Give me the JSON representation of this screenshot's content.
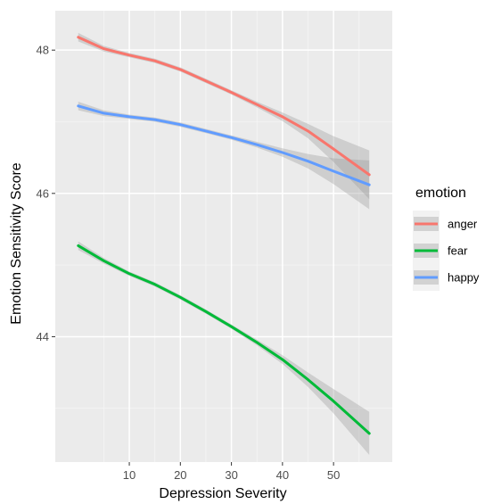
{
  "chart_data": {
    "type": "line",
    "xlabel": "Depression Severity",
    "ylabel": "Emotion Sensitivity Score",
    "xlim": [
      -4.5,
      61.5
    ],
    "ylim": [
      42.25,
      48.55
    ],
    "x_ticks": [
      10,
      20,
      30,
      40,
      50
    ],
    "y_ticks": [
      44,
      46,
      48
    ],
    "x_tick_labels": [
      "10",
      "20",
      "30",
      "40",
      "50"
    ],
    "y_tick_labels": [
      "44",
      "46",
      "48"
    ],
    "grid": true,
    "legend": {
      "title": "emotion",
      "position": "right"
    },
    "series": [
      {
        "name": "anger",
        "color": "#F8766D",
        "x": [
          0,
          5,
          10,
          15,
          20,
          25,
          30,
          35,
          40,
          45,
          50,
          57
        ],
        "y": [
          48.18,
          48.02,
          47.93,
          47.85,
          47.73,
          47.57,
          47.41,
          47.24,
          47.07,
          46.87,
          46.62,
          46.26
        ],
        "ci_lower": [
          48.12,
          47.98,
          47.9,
          47.82,
          47.7,
          47.54,
          47.38,
          47.2,
          47.01,
          46.77,
          46.44,
          45.92
        ],
        "ci_upper": [
          48.24,
          48.06,
          47.96,
          47.88,
          47.76,
          47.6,
          47.44,
          47.28,
          47.13,
          46.97,
          46.8,
          46.6
        ]
      },
      {
        "name": "fear",
        "color": "#00BA38",
        "x": [
          0,
          5,
          10,
          15,
          20,
          25,
          30,
          35,
          40,
          45,
          50,
          57
        ],
        "y": [
          45.27,
          45.06,
          44.88,
          44.73,
          44.55,
          44.35,
          44.14,
          43.92,
          43.68,
          43.4,
          43.1,
          42.65
        ],
        "ci_lower": [
          45.21,
          45.02,
          44.85,
          44.7,
          44.52,
          44.32,
          44.11,
          43.88,
          43.62,
          43.3,
          42.93,
          42.35
        ],
        "ci_upper": [
          45.33,
          45.1,
          44.91,
          44.76,
          44.58,
          44.38,
          44.17,
          43.96,
          43.74,
          43.5,
          43.27,
          42.95
        ]
      },
      {
        "name": "happy",
        "color": "#619CFF",
        "x": [
          0,
          5,
          10,
          15,
          20,
          25,
          30,
          35,
          40,
          45,
          50,
          57
        ],
        "y": [
          47.22,
          47.12,
          47.07,
          47.03,
          46.96,
          46.87,
          46.78,
          46.68,
          46.57,
          46.45,
          46.31,
          46.12
        ],
        "ci_lower": [
          47.16,
          47.08,
          47.04,
          47.0,
          46.93,
          46.84,
          46.75,
          46.64,
          46.51,
          46.35,
          46.13,
          45.78
        ],
        "ci_upper": [
          47.28,
          47.16,
          47.1,
          47.06,
          46.99,
          46.9,
          46.81,
          46.72,
          46.63,
          46.55,
          46.49,
          46.46
        ]
      }
    ]
  }
}
